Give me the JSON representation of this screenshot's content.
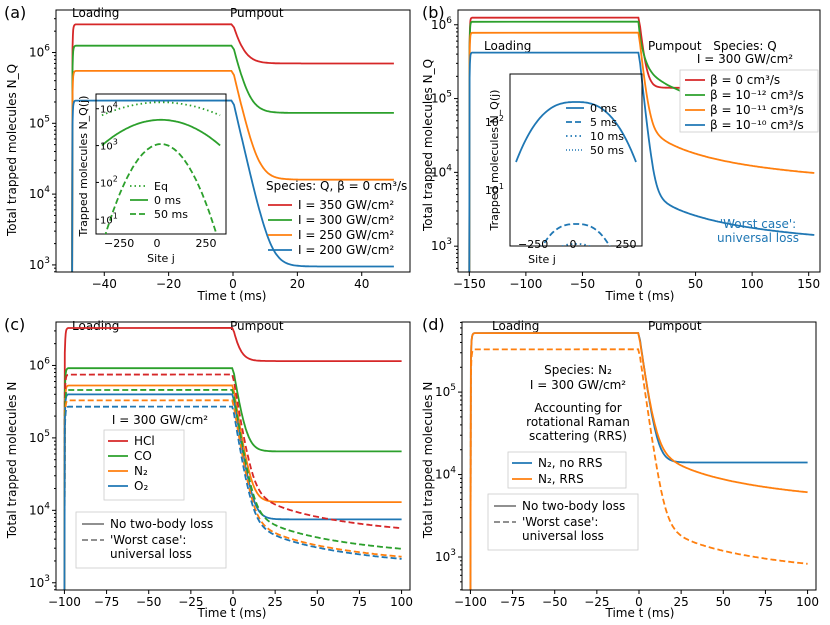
{
  "chart_data": [
    {
      "panel": "(a)",
      "type": "line",
      "xlabel": "Time t (ms)",
      "ylabel": "Total trapped molecules N_Q",
      "xlim": [
        -55,
        55
      ],
      "ylim_log10": [
        2.9,
        6.6
      ],
      "xticks": [
        -40,
        -20,
        0,
        20,
        40
      ],
      "xtick_labels": [
        "−40",
        "−20",
        "0",
        "20",
        "40"
      ],
      "yticks_exp": [
        3,
        4,
        5,
        6
      ],
      "annotations": [
        "Loading",
        "Pumpout"
      ],
      "legend_title": "Species: Q, β = 0 cm³/s",
      "series": [
        {
          "name": "I = 350 GW/cm²",
          "color": "#d62728",
          "dash": "solid",
          "plateau": 2500000,
          "final": 700000,
          "tau": 2
        },
        {
          "name": "I = 300 GW/cm²",
          "color": "#2ca02c",
          "dash": "solid",
          "plateau": 1250000,
          "final": 140000,
          "tau": 2
        },
        {
          "name": "I = 250 GW/cm²",
          "color": "#ff7f0e",
          "dash": "solid",
          "plateau": 550000,
          "final": 16000,
          "tau": 2.5
        },
        {
          "name": "I = 200 GW/cm²",
          "color": "#1f77b4",
          "dash": "solid",
          "plateau": 210000,
          "final": 950,
          "tau": 3
        }
      ],
      "inset": {
        "xlabel": "Site j",
        "ylabel": "Trapped molecules N_Q(j)",
        "xticks": [
          -250,
          0,
          250
        ],
        "xtick_labels": [
          "−250",
          "0",
          "250"
        ],
        "yticks_exp": [
          1,
          2,
          3,
          4
        ],
        "series": [
          {
            "name": "Eq",
            "color": "#2ca02c",
            "dash": "dotted",
            "peak": 15000
          },
          {
            "name": "0 ms",
            "color": "#2ca02c",
            "dash": "solid",
            "peak": 5000
          },
          {
            "name": "50 ms",
            "color": "#2ca02c",
            "dash": "dashed",
            "peak": 1100
          }
        ]
      }
    },
    {
      "panel": "(b)",
      "type": "line",
      "xlabel": "Time t (ms)",
      "ylabel": "Total trapped molecules N_Q",
      "xlim": [
        -160,
        160
      ],
      "ylim_log10": [
        2.65,
        6.2
      ],
      "xticks": [
        -150,
        -100,
        -50,
        0,
        50,
        100,
        150
      ],
      "xtick_labels": [
        "−150",
        "−100",
        "−50",
        "0",
        "50",
        "100",
        "150"
      ],
      "yticks_exp": [
        3,
        4,
        5,
        6
      ],
      "annotations": [
        "Loading",
        "Pumpout",
        "Species: Q",
        "I = 300 GW/cm²",
        "'Worst case':",
        "universal loss"
      ],
      "series": [
        {
          "name": "β = 0 cm³/s",
          "color": "#d62728",
          "dash": "solid",
          "plateau": 1250000,
          "final": 140000
        },
        {
          "name": "β = 10⁻¹² cm³/s",
          "color": "#2ca02c",
          "dash": "solid",
          "plateau": 1100000,
          "final": 27000
        },
        {
          "name": "β = 10⁻¹¹ cm³/s",
          "color": "#ff7f0e",
          "dash": "solid",
          "plateau": 780000,
          "final": 4500
        },
        {
          "name": "β = 10⁻¹⁰ cm³/s",
          "color": "#1f77b4",
          "dash": "solid",
          "plateau": 420000,
          "final": 650
        }
      ],
      "inset": {
        "xlabel": "Site j",
        "ylabel": "Trapped molecules N_Q(j)",
        "xticks": [
          -250,
          0,
          250
        ],
        "xtick_labels": [
          "−250",
          "0",
          "250"
        ],
        "yticks_exp": [
          1,
          2
        ],
        "series": [
          {
            "name": "0 ms",
            "color": "#1f77b4",
            "dash": "solid"
          },
          {
            "name": "5 ms",
            "color": "#1f77b4",
            "dash": "dashed"
          },
          {
            "name": "10 ms",
            "color": "#1f77b4",
            "dash": "dotted"
          },
          {
            "name": "50 ms",
            "color": "#1f77b4",
            "dash": "dotted"
          }
        ]
      }
    },
    {
      "panel": "(c)",
      "type": "line",
      "xlabel": "Time t (ms)",
      "ylabel": "Total trapped molecules N",
      "xlim": [
        -105,
        105
      ],
      "ylim_log10": [
        2.9,
        6.6
      ],
      "xticks": [
        -100,
        -75,
        -50,
        -25,
        0,
        25,
        50,
        75,
        100
      ],
      "xtick_labels": [
        "−100",
        "−75",
        "−50",
        "−25",
        "0",
        "25",
        "50",
        "75",
        "100"
      ],
      "yticks_exp": [
        3,
        4,
        5,
        6
      ],
      "annotations": [
        "Loading",
        "Pumpout",
        "I = 300 GW/cm²"
      ],
      "series": [
        {
          "name": "HCl",
          "color": "#d62728",
          "dash": "solid",
          "plateau": 3300000,
          "final": 1150000
        },
        {
          "name": "CO",
          "color": "#2ca02c",
          "dash": "solid",
          "plateau": 920000,
          "final": 65000
        },
        {
          "name": "N₂",
          "color": "#ff7f0e",
          "dash": "solid",
          "plateau": 530000,
          "final": 13000
        },
        {
          "name": "O₂",
          "color": "#1f77b4",
          "dash": "solid",
          "plateau": 400000,
          "final": 7500
        }
      ],
      "dashed_series": [
        {
          "color": "#d62728",
          "plateau": 750000,
          "final": 2600
        },
        {
          "color": "#2ca02c",
          "plateau": 460000,
          "final": 1350
        },
        {
          "color": "#ff7f0e",
          "plateau": 330000,
          "final": 1050
        },
        {
          "color": "#1f77b4",
          "plateau": 270000,
          "final": 980
        }
      ],
      "style_legend": [
        "No two-body loss",
        "'Worst case':",
        "universal loss"
      ]
    },
    {
      "panel": "(d)",
      "type": "line",
      "xlabel": "Time t (ms)",
      "ylabel": "Total trapped molecules N",
      "xlim": [
        -105,
        105
      ],
      "ylim_log10": [
        2.6,
        5.85
      ],
      "xticks": [
        -100,
        -75,
        -50,
        -25,
        0,
        25,
        50,
        75,
        100
      ],
      "xtick_labels": [
        "−100",
        "−75",
        "−50",
        "−25",
        "0",
        "25",
        "50",
        "75",
        "100"
      ],
      "yticks_exp": [
        3,
        4,
        5
      ],
      "annotations": [
        "Loading",
        "Pumpout",
        "Species: N₂",
        "I = 300 GW/cm²",
        "Accounting for",
        "rotational Raman",
        "scattering (RRS)"
      ],
      "series": [
        {
          "name": "N₂, no RRS",
          "color": "#1f77b4",
          "dash": "solid",
          "plateau": 520000,
          "final": 14000
        },
        {
          "name": "N₂, RRS",
          "color": "#ff7f0e",
          "dash": "solid",
          "plateau": 520000,
          "final": 2800
        }
      ],
      "dashed_series": [
        {
          "color": "#ff7f0e",
          "plateau": 330000,
          "final": 380
        }
      ],
      "style_legend": [
        "No two-body loss",
        "'Worst case':",
        "universal loss"
      ]
    }
  ]
}
